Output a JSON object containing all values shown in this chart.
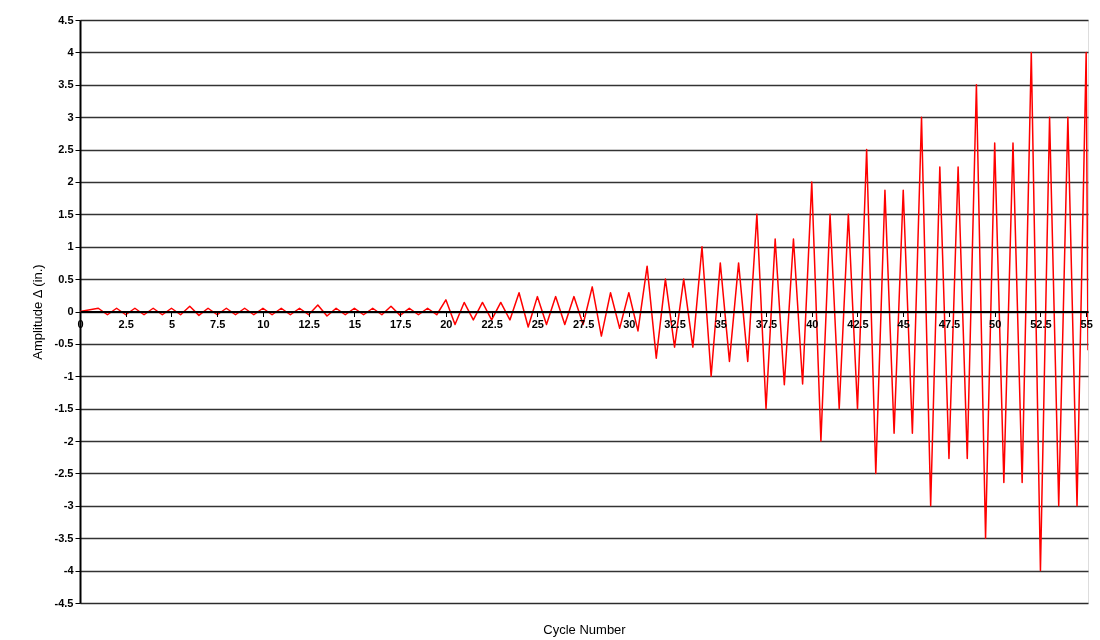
{
  "chart_data": {
    "type": "line",
    "xlabel": "Cycle Number",
    "ylabel": "Amplitude Δ (in.)",
    "xlim": [
      0,
      55.1
    ],
    "ylim": [
      -4.5,
      4.5
    ],
    "xticks": [
      0,
      2.5,
      5,
      7.5,
      10,
      12.5,
      15,
      17.5,
      20,
      22.5,
      25,
      27.5,
      30,
      32.5,
      35,
      37.5,
      40,
      42.5,
      45,
      47.5,
      50,
      52.5,
      55
    ],
    "yticks": [
      -4.5,
      -4,
      -3.5,
      -3,
      -2.5,
      -2,
      -1.5,
      -1,
      -0.5,
      0,
      0.5,
      1,
      1.5,
      2,
      2.5,
      3,
      3.5,
      4,
      4.5
    ],
    "grid": "y",
    "marker": "none",
    "line_style": "solid",
    "x": [
      0,
      1,
      1.5,
      2,
      2.5,
      3,
      3.5,
      4,
      4.5,
      5,
      5.5,
      6,
      6.5,
      7,
      7.5,
      8,
      8.5,
      9,
      9.5,
      10,
      10.5,
      11,
      11.5,
      12,
      12.5,
      13,
      13.5,
      14,
      14.5,
      15,
      15.5,
      16,
      16.5,
      17,
      17.5,
      18,
      18.5,
      19,
      19.5,
      20,
      20.5,
      21,
      21.5,
      22,
      22.5,
      23,
      23.5,
      24,
      24.5,
      25,
      25.5,
      26,
      26.5,
      27,
      27.5,
      28,
      28.5,
      29,
      29.5,
      30,
      30.5,
      31,
      31.5,
      32,
      32.5,
      33,
      33.5,
      34,
      34.5,
      35,
      35.5,
      36,
      36.5,
      37,
      37.5,
      38,
      38.5,
      39,
      39.5,
      40,
      40.5,
      41,
      41.5,
      42,
      42.5,
      43,
      43.5,
      44,
      44.5,
      45,
      45.5,
      46,
      46.5,
      47,
      47.5,
      48,
      48.5,
      49,
      49.5,
      50,
      50.5,
      51,
      51.5,
      52,
      52.5,
      53,
      53.5,
      54,
      54.5,
      55,
      55.1
    ],
    "series": [
      {
        "color": "#ff0000",
        "values": [
          0,
          0.05,
          -0.05,
          0.05,
          -0.05,
          0.05,
          -0.05,
          0.05,
          -0.05,
          0.05,
          -0.05,
          0.08,
          -0.06,
          0.05,
          -0.05,
          0.05,
          -0.05,
          0.05,
          -0.05,
          0.05,
          -0.05,
          0.05,
          -0.05,
          0.05,
          -0.05,
          0.1,
          -0.07,
          0.05,
          -0.05,
          0.05,
          -0.05,
          0.05,
          -0.05,
          0.08,
          -0.06,
          0.05,
          -0.05,
          0.05,
          -0.05,
          0.18,
          -0.2,
          0.14,
          -0.13,
          0.14,
          -0.13,
          0.14,
          -0.13,
          0.29,
          -0.24,
          0.23,
          -0.2,
          0.23,
          -0.2,
          0.23,
          -0.2,
          0.38,
          -0.38,
          0.29,
          -0.26,
          0.29,
          -0.3,
          0.7,
          -0.72,
          0.5,
          -0.55,
          0.5,
          -0.55,
          1,
          -1,
          0.75,
          -0.77,
          0.75,
          -0.77,
          1.5,
          -1.5,
          1.12,
          -1.13,
          1.12,
          -1.12,
          2,
          -2,
          1.5,
          -1.5,
          1.5,
          -1.5,
          2.5,
          -2.5,
          1.87,
          -1.88,
          1.87,
          -1.88,
          3,
          -3,
          2.23,
          -2.27,
          2.23,
          -2.27,
          3.5,
          -3.5,
          2.6,
          -2.64,
          2.6,
          -2.64,
          4,
          -4,
          3,
          -3,
          3,
          -3,
          4,
          -0.6
        ]
      }
    ]
  }
}
